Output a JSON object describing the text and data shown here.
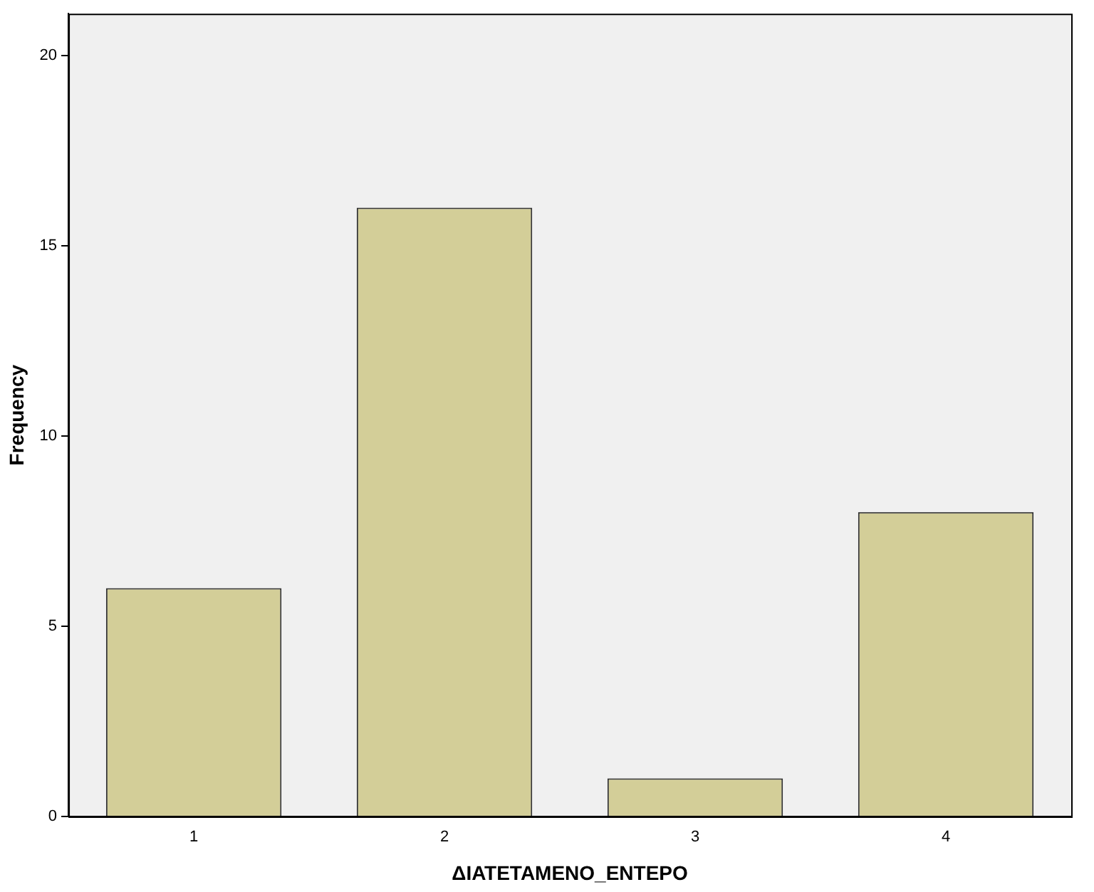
{
  "chart_data": {
    "type": "bar",
    "xlabel": "ΔΙΑΤΕΤΑΜΕΝΟ_ΕΝΤΕΡΟ",
    "ylabel": "Frequency",
    "categories": [
      "1",
      "2",
      "3",
      "4"
    ],
    "values": [
      6,
      16,
      1,
      8
    ],
    "color": "#d3ce98",
    "ylim": [
      0,
      21.1
    ],
    "yticks": [
      0,
      5,
      10,
      15,
      20
    ],
    "grid": false,
    "legend": false
  }
}
